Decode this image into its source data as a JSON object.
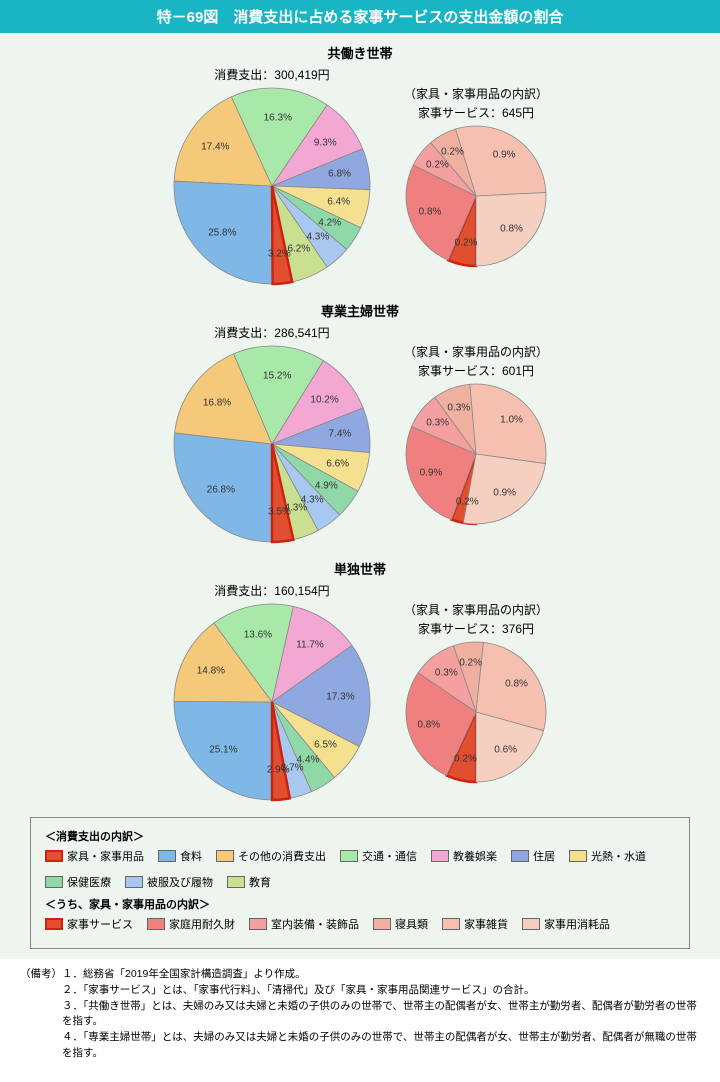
{
  "header": "特－69図　消費支出に占める家事サービスの支出金額の割合",
  "colors": {
    "bg": "#eef4ee",
    "main": {
      "furniture": "#e05030",
      "food": "#7fb7e6",
      "other": "#f5c97a",
      "transport": "#a8e8a8",
      "leisure": "#f3a8d4",
      "housing": "#8fa8e0",
      "utilities": "#f5e090",
      "health": "#8fd8a8",
      "clothing": "#a8c8f0",
      "education": "#c8e090"
    },
    "sub": {
      "service": "#e05030",
      "durable": "#f08080",
      "interior": "#f5a0a0",
      "bedding": "#f0b0a0",
      "misc": "#f5c0b0",
      "consumable": "#f5d0c0"
    }
  },
  "sections": [
    {
      "title": "共働き世帯",
      "main_label": "消費支出：300,419円",
      "sub_label1": "（家具・家事用品の内訳）",
      "sub_label2": "家事サービス：645円",
      "main_slices": [
        {
          "pct": 25.8,
          "label": "25.8%"
        },
        {
          "pct": 17.4,
          "label": "17.4%"
        },
        {
          "pct": 16.3,
          "label": "16.3%"
        },
        {
          "pct": 9.3,
          "label": "9.3%"
        },
        {
          "pct": 6.8,
          "label": "6.8%"
        },
        {
          "pct": 6.4,
          "label": "6.4%"
        },
        {
          "pct": 4.2,
          "label": "4.2%"
        },
        {
          "pct": 4.3,
          "label": "4.3%"
        },
        {
          "pct": 6.2,
          "label": "6.2%"
        },
        {
          "pct": 3.2,
          "label": "3.2%"
        }
      ],
      "main_highlight": 9,
      "sub_slices": [
        {
          "pct": 6.5,
          "label": "0.2%"
        },
        {
          "pct": 25.8,
          "label": "0.8%"
        },
        {
          "pct": 6.5,
          "label": "0.2%"
        },
        {
          "pct": 6.5,
          "label": "0.2%"
        },
        {
          "pct": 28.9,
          "label": "0.9%"
        },
        {
          "pct": 25.8,
          "label": "0.8%"
        }
      ]
    },
    {
      "title": "専業主婦世帯",
      "main_label": "消費支出：286,541円",
      "sub_label1": "（家具・家事用品の内訳）",
      "sub_label2": "家事サービス：601円",
      "main_slices": [
        {
          "pct": 26.8,
          "label": "26.8%"
        },
        {
          "pct": 16.8,
          "label": "16.8%"
        },
        {
          "pct": 15.2,
          "label": "15.2%"
        },
        {
          "pct": 10.2,
          "label": "10.2%"
        },
        {
          "pct": 7.4,
          "label": "7.4%"
        },
        {
          "pct": 6.6,
          "label": "6.6%"
        },
        {
          "pct": 4.9,
          "label": "4.9%"
        },
        {
          "pct": 4.3,
          "label": "4.3%"
        },
        {
          "pct": 4.3,
          "label": "4.3%"
        },
        {
          "pct": 3.5,
          "label": "3.5%"
        }
      ],
      "main_highlight": 9,
      "sub_slices": [
        {
          "pct": 5.7,
          "label": "0.2%"
        },
        {
          "pct": 25.7,
          "label": "0.9%"
        },
        {
          "pct": 8.6,
          "label": "0.3%"
        },
        {
          "pct": 8.6,
          "label": "0.3%"
        },
        {
          "pct": 28.6,
          "label": "1.0%"
        },
        {
          "pct": 25.7,
          "label": "0.9%"
        }
      ]
    },
    {
      "title": "単独世帯",
      "main_label": "消費支出：160,154円",
      "sub_label1": "（家具・家事用品の内訳）",
      "sub_label2": "家事サービス：376円",
      "main_slices": [
        {
          "pct": 25.1,
          "label": "25.1%"
        },
        {
          "pct": 14.8,
          "label": "14.8%"
        },
        {
          "pct": 13.6,
          "label": "13.6%"
        },
        {
          "pct": 11.7,
          "label": "11.7%"
        },
        {
          "pct": 17.3,
          "label": "17.3%"
        },
        {
          "pct": 6.5,
          "label": "6.5%"
        },
        {
          "pct": 4.4,
          "label": "4.4%"
        },
        {
          "pct": 3.7,
          "label": "3.7%"
        },
        {
          "pct": 0.0,
          "label": ""
        },
        {
          "pct": 2.9,
          "label": "2.9%"
        }
      ],
      "main_highlight": 9,
      "sub_slices": [
        {
          "pct": 6.9,
          "label": "0.2%"
        },
        {
          "pct": 27.6,
          "label": "0.8%"
        },
        {
          "pct": 10.3,
          "label": "0.3%"
        },
        {
          "pct": 6.9,
          "label": "0.2%"
        },
        {
          "pct": 27.6,
          "label": "0.8%"
        },
        {
          "pct": 20.7,
          "label": "0.6%"
        }
      ]
    }
  ],
  "legend": {
    "title1": "＜消費支出の内訳＞",
    "title2": "＜うち、家具・家事用品の内訳＞",
    "main": [
      {
        "k": "furniture",
        "t": "家具・家事用品"
      },
      {
        "k": "food",
        "t": "食料"
      },
      {
        "k": "other",
        "t": "その他の消費支出"
      },
      {
        "k": "transport",
        "t": "交通・通信"
      },
      {
        "k": "leisure",
        "t": "教養娯楽"
      },
      {
        "k": "housing",
        "t": "住居"
      },
      {
        "k": "utilities",
        "t": "光熱・水道"
      },
      {
        "k": "health",
        "t": "保健医療"
      },
      {
        "k": "clothing",
        "t": "被服及び履物"
      },
      {
        "k": "education",
        "t": "教育"
      }
    ],
    "sub": [
      {
        "k": "service",
        "t": "家事サービス"
      },
      {
        "k": "durable",
        "t": "家庭用耐久財"
      },
      {
        "k": "interior",
        "t": "室内装備・装飾品"
      },
      {
        "k": "bedding",
        "t": "寝具類"
      },
      {
        "k": "misc",
        "t": "家事雑貨"
      },
      {
        "k": "consumable",
        "t": "家事用消耗品"
      }
    ]
  },
  "notes": {
    "prefix": "（備考）",
    "items": [
      "１．総務省「2019年全国家計構造調査」より作成。",
      "２．「家事サービス」とは、「家事代行料」、「清掃代」及び「家具・家事用品関連サービス」の合計。",
      "３．「共働き世帯」とは、夫婦のみ又は夫婦と未婚の子供のみの世帯で、世帯主の配偶者が女、世帯主が勤労者、配偶者が勤労者の世帯を指す。",
      "４．「専業主婦世帯」とは、夫婦のみ又は夫婦と未婚の子供のみの世帯で、世帯主の配偶者が女、世帯主が勤労者、配偶者が無職の世帯を指す。"
    ]
  },
  "chart_geom": {
    "main_r": 98,
    "sub_r": 70,
    "start_angle": 90
  }
}
